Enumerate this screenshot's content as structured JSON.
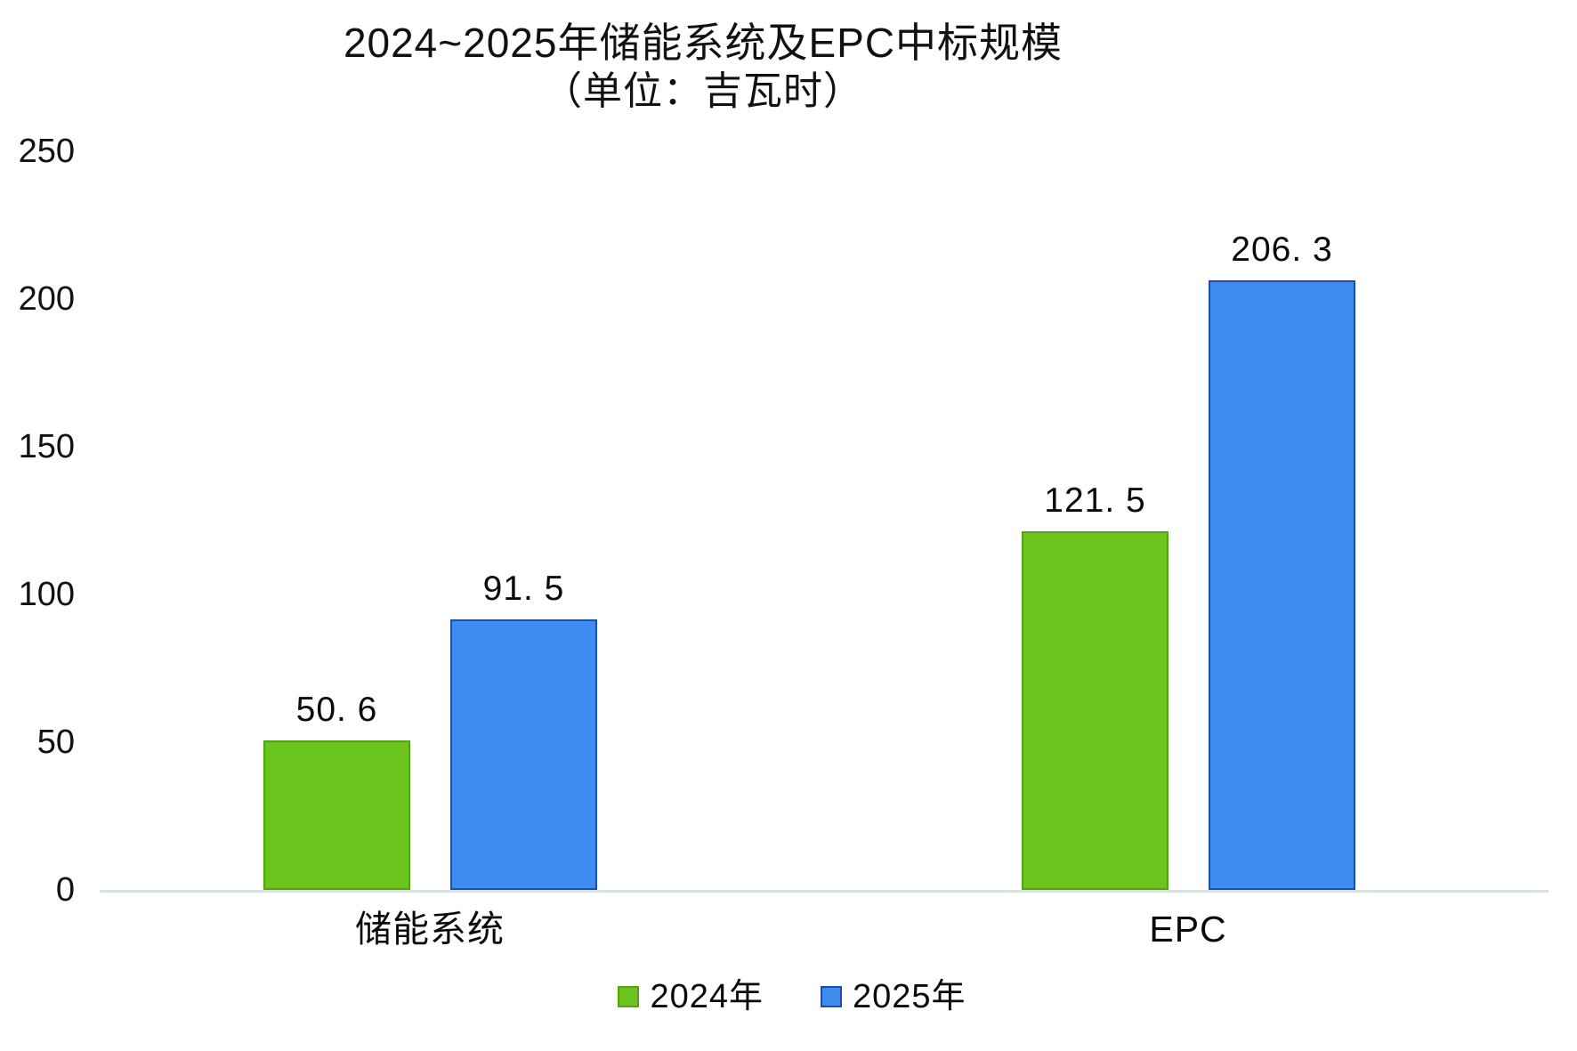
{
  "title": {
    "line1": "2024~2025年储能系统及EPC中标规模",
    "line2": "（单位：吉瓦时）"
  },
  "chart_data": {
    "type": "bar",
    "categories": [
      "储能系统",
      "EPC"
    ],
    "series": [
      {
        "name": "2024年",
        "color": "#6cc41e",
        "border_color": "#55a213",
        "values": [
          50.6,
          121.5
        ],
        "value_labels": [
          "50. 6",
          "121. 5"
        ]
      },
      {
        "name": "2025年",
        "color": "#3e8cf0",
        "border_color": "#1c50a8",
        "values": [
          91.5,
          206.3
        ],
        "value_labels": [
          "91. 5",
          "206. 3"
        ]
      }
    ],
    "ylim": [
      0,
      250
    ],
    "yticks": [
      "0",
      "50",
      "100",
      "150",
      "200",
      "250"
    ],
    "xlabel": "",
    "ylabel": "",
    "grid": false,
    "legend_position": "bottom"
  },
  "colors": {
    "background": "#ffffff",
    "axis_line": "#d6e3e0",
    "text": "#111111"
  }
}
